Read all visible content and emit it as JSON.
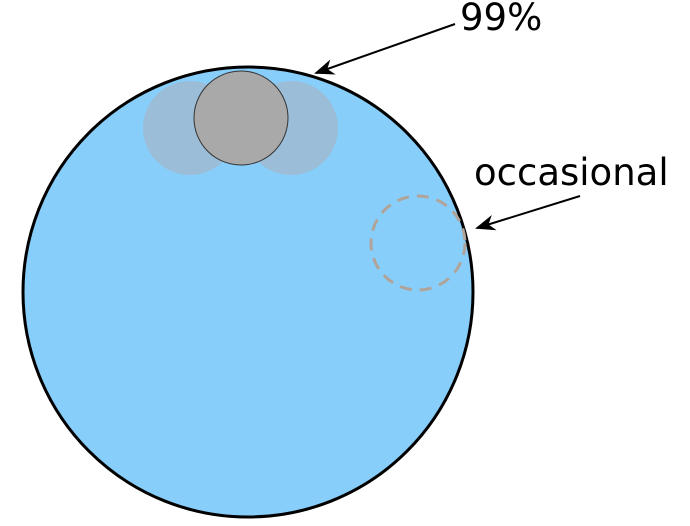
{
  "labels": {
    "top": "99%",
    "side": "occasional"
  },
  "colors": {
    "big_circle_fill": "#87cefa",
    "big_circle_stroke": "#000000",
    "ghost_circle_fill": "#9fbad0",
    "gray_ball_fill": "#a9a9a9",
    "gray_ball_stroke": "#333333",
    "dashed_circle_stroke": "#b0a49a",
    "arrow_color": "#000000"
  }
}
